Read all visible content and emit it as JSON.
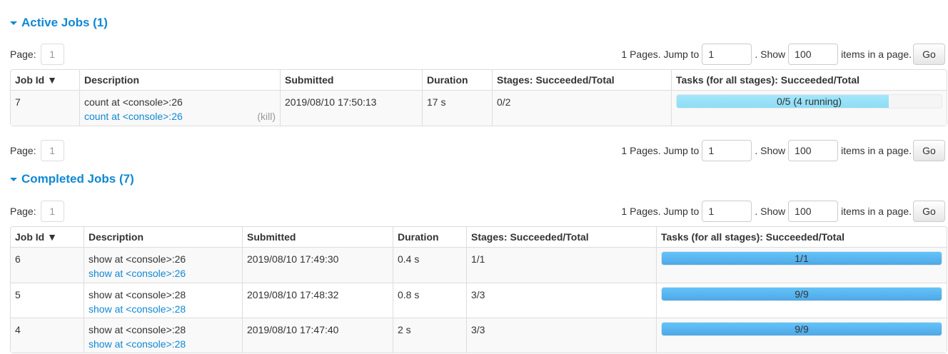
{
  "active": {
    "title": "Active Jobs (1)",
    "pager": {
      "page_label": "Page:",
      "page": "1",
      "pages_text": "1 Pages. Jump to",
      "jump": "1",
      "show_text": ". Show",
      "show": "100",
      "items_text": "items in a page.",
      "go": "Go"
    },
    "columns": [
      "Job Id ▼",
      "Description",
      "Submitted",
      "Duration",
      "Stages: Succeeded/Total",
      "Tasks (for all stages): Succeeded/Total"
    ],
    "rows": [
      {
        "id": "7",
        "desc": "count at <console>:26",
        "link": "count at <console>:26",
        "kill": "(kill)",
        "submitted": "2019/08/10 17:50:13",
        "duration": "17 s",
        "stages": "0/2",
        "tasks": "0/5 (4 running)",
        "succeeded": 0,
        "running": 4,
        "total": 5
      }
    ]
  },
  "completed": {
    "title": "Completed Jobs (7)",
    "pager": {
      "page_label": "Page:",
      "page": "1",
      "pages_text": "1 Pages. Jump to",
      "jump": "1",
      "show_text": ". Show",
      "show": "100",
      "items_text": "items in a page.",
      "go": "Go"
    },
    "columns": [
      "Job Id ▼",
      "Description",
      "Submitted",
      "Duration",
      "Stages: Succeeded/Total",
      "Tasks (for all stages): Succeeded/Total"
    ],
    "rows": [
      {
        "id": "6",
        "desc": "show at <console>:26",
        "link": "show at <console>:26",
        "submitted": "2019/08/10 17:49:30",
        "duration": "0.4 s",
        "stages": "1/1",
        "tasks": "1/1",
        "succeeded": 1,
        "total": 1
      },
      {
        "id": "5",
        "desc": "show at <console>:28",
        "link": "show at <console>:28",
        "submitted": "2019/08/10 17:48:32",
        "duration": "0.8 s",
        "stages": "3/3",
        "tasks": "9/9",
        "succeeded": 9,
        "total": 9
      },
      {
        "id": "4",
        "desc": "show at <console>:28",
        "link": "show at <console>:28",
        "submitted": "2019/08/10 17:47:40",
        "duration": "2 s",
        "stages": "3/3",
        "tasks": "9/9",
        "succeeded": 9,
        "total": 9
      }
    ]
  },
  "bottom_pager": {
    "page_label": "Page:",
    "page": "1",
    "pages_text": "1 Pages. Jump to",
    "jump": "1",
    "show_text": ". Show",
    "show": "100",
    "items_text": "items in a page.",
    "go": "Go"
  }
}
